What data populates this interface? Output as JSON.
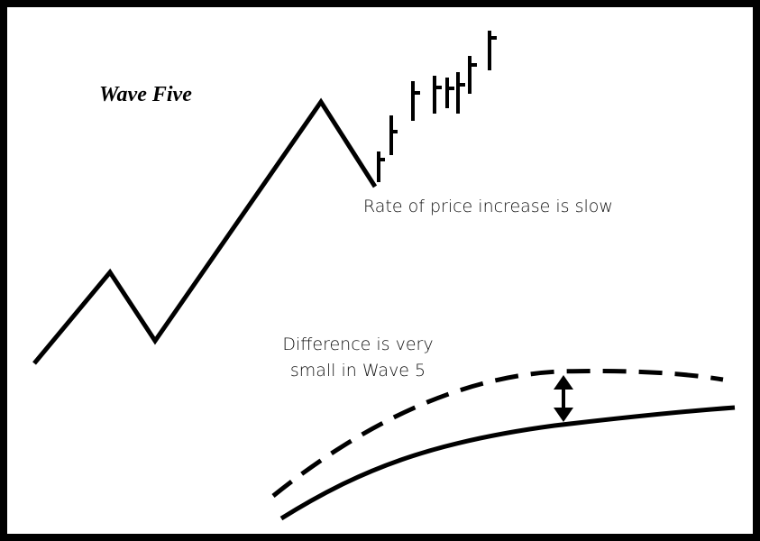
{
  "title": "Wave Five",
  "annotations": {
    "rate_note": "Rate of price increase is slow",
    "difference_note": [
      "Difference is very",
      "small in Wave 5"
    ]
  }
}
